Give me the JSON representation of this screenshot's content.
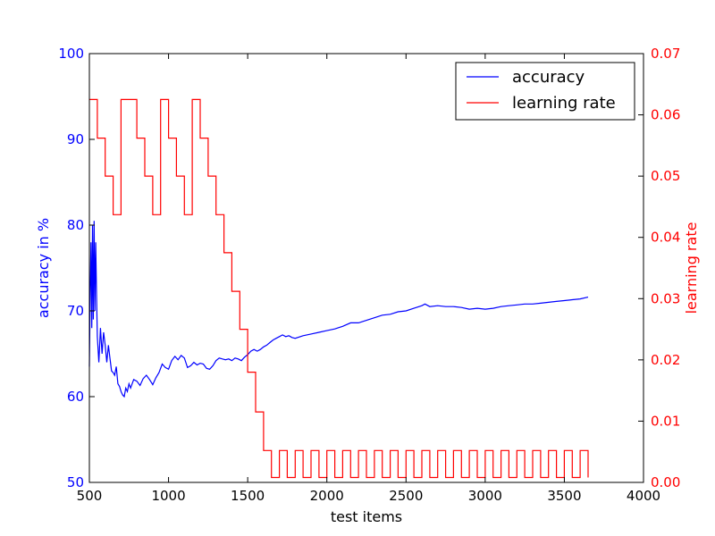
{
  "chart_data": {
    "type": "line",
    "title": "",
    "xlabel": "test items",
    "ylabel_left": "accuracy in %",
    "ylabel_right": "learning rate",
    "xlim": [
      500,
      4000
    ],
    "ylim_left": [
      50,
      100
    ],
    "ylim_right": [
      0.0,
      0.07
    ],
    "x_ticks": [
      "500",
      "1000",
      "1500",
      "2000",
      "2500",
      "3000",
      "3500",
      "4000"
    ],
    "y_left_ticks": [
      "50",
      "60",
      "70",
      "80",
      "90",
      "100"
    ],
    "y_right_ticks": [
      "0.00",
      "0.01",
      "0.02",
      "0.03",
      "0.04",
      "0.05",
      "0.06",
      "0.07"
    ],
    "grid": false,
    "legend_position": "top-right",
    "series": [
      {
        "name": "accuracy",
        "axis": "left",
        "color": "#0000ff",
        "x": [
          500,
          505,
          510,
          515,
          520,
          525,
          530,
          535,
          540,
          545,
          550,
          560,
          570,
          580,
          590,
          600,
          610,
          620,
          630,
          640,
          650,
          660,
          670,
          680,
          690,
          700,
          710,
          720,
          730,
          740,
          750,
          760,
          780,
          800,
          820,
          840,
          860,
          880,
          900,
          920,
          940,
          960,
          980,
          1000,
          1020,
          1040,
          1060,
          1080,
          1100,
          1120,
          1140,
          1160,
          1180,
          1200,
          1220,
          1240,
          1260,
          1280,
          1300,
          1320,
          1340,
          1360,
          1380,
          1400,
          1420,
          1440,
          1460,
          1480,
          1500,
          1520,
          1540,
          1560,
          1580,
          1600,
          1620,
          1640,
          1660,
          1680,
          1700,
          1720,
          1740,
          1760,
          1780,
          1800,
          1850,
          1900,
          1950,
          2000,
          2050,
          2100,
          2150,
          2200,
          2250,
          2300,
          2350,
          2400,
          2450,
          2500,
          2550,
          2600,
          2620,
          2650,
          2700,
          2750,
          2800,
          2850,
          2900,
          2950,
          3000,
          3050,
          3100,
          3150,
          3200,
          3250,
          3300,
          3350,
          3400,
          3450,
          3500,
          3550,
          3600,
          3650
        ],
        "y": [
          63.5,
          72,
          78,
          68,
          80,
          69,
          80.5,
          70,
          78,
          72,
          67,
          64,
          68,
          65,
          67.5,
          66,
          64,
          66,
          64.5,
          63,
          62.8,
          62.5,
          63.5,
          61.5,
          61.2,
          60.6,
          60.2,
          60.0,
          61.0,
          60.6,
          61.5,
          61.0,
          62.0,
          61.8,
          61.3,
          62.1,
          62.5,
          62.0,
          61.4,
          62.2,
          62.8,
          63.8,
          63.4,
          63.2,
          64.2,
          64.7,
          64.3,
          64.8,
          64.5,
          63.4,
          63.6,
          64.0,
          63.7,
          63.9,
          63.8,
          63.3,
          63.2,
          63.6,
          64.2,
          64.5,
          64.4,
          64.3,
          64.4,
          64.2,
          64.5,
          64.4,
          64.2,
          64.6,
          64.9,
          65.3,
          65.5,
          65.3,
          65.5,
          65.8,
          66.0,
          66.3,
          66.6,
          66.8,
          67.0,
          67.2,
          67.0,
          67.1,
          66.9,
          66.8,
          67.1,
          67.3,
          67.5,
          67.7,
          67.9,
          68.2,
          68.6,
          68.6,
          68.9,
          69.2,
          69.5,
          69.6,
          69.9,
          70.0,
          70.3,
          70.6,
          70.8,
          70.5,
          70.6,
          70.5,
          70.5,
          70.4,
          70.2,
          70.3,
          70.2,
          70.3,
          70.5,
          70.6,
          70.7,
          70.8,
          70.8,
          70.9,
          71.0,
          71.1,
          71.2,
          71.3,
          71.4,
          71.6
        ]
      },
      {
        "name": "learning rate",
        "axis": "right",
        "color": "#ff0000",
        "step": true,
        "x": [
          500,
          550,
          600,
          650,
          700,
          800,
          850,
          900,
          950,
          1000,
          1050,
          1100,
          1150,
          1200,
          1250,
          1300,
          1350,
          1400,
          1450,
          1500,
          1550,
          1600,
          1650,
          1700,
          1750,
          1800,
          1850,
          1900,
          1950,
          2000,
          2050,
          2100,
          2150,
          2200,
          2250,
          2300,
          2350,
          2400,
          2450,
          2500,
          2550,
          2600,
          2650,
          2700,
          2750,
          2800,
          2850,
          2900,
          2950,
          3000,
          3050,
          3100,
          3150,
          3200,
          3250,
          3300,
          3350,
          3400,
          3450,
          3500,
          3550,
          3600,
          3650
        ],
        "y": [
          0.0625,
          0.0562,
          0.05,
          0.0437,
          0.0625,
          0.0562,
          0.05,
          0.0437,
          0.0625,
          0.0562,
          0.05,
          0.0437,
          0.0625,
          0.0562,
          0.05,
          0.0437,
          0.0375,
          0.0312,
          0.025,
          0.018,
          0.0115,
          0.0052,
          0.0008,
          0.0052,
          0.0008,
          0.0052,
          0.0008,
          0.0052,
          0.0008,
          0.0052,
          0.0008,
          0.0052,
          0.0008,
          0.0052,
          0.0008,
          0.0052,
          0.0008,
          0.0052,
          0.0008,
          0.0052,
          0.0008,
          0.0052,
          0.0008,
          0.0052,
          0.0008,
          0.0052,
          0.0008,
          0.0052,
          0.0008,
          0.0052,
          0.0008,
          0.0052,
          0.0008,
          0.0052,
          0.0008,
          0.0052,
          0.0008,
          0.0052,
          0.0008,
          0.0052,
          0.0008,
          0.0052,
          0.0008
        ]
      }
    ]
  }
}
